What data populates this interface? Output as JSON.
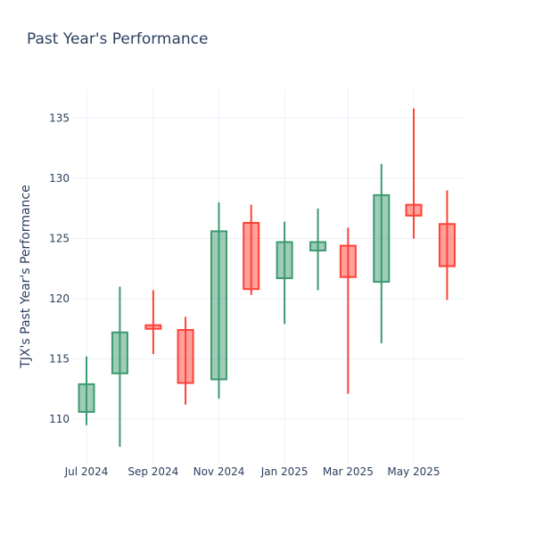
{
  "chart_data": {
    "type": "candlestick",
    "title": "Past Year's Performance",
    "ylabel": "TJX's Past Year's Performance",
    "xlabel": "",
    "ylim": [
      106.3,
      137.4
    ],
    "grid": true,
    "x_ticks": [
      {
        "label": "Jul 2024",
        "date": "2024-07-01"
      },
      {
        "label": "Sep 2024",
        "date": "2024-09-01"
      },
      {
        "label": "Nov 2024",
        "date": "2024-11-01"
      },
      {
        "label": "Jan 2025",
        "date": "2025-01-01"
      },
      {
        "label": "Mar 2025",
        "date": "2025-03-01"
      },
      {
        "label": "May 2025",
        "date": "2025-05-01"
      }
    ],
    "y_ticks": [
      110,
      115,
      120,
      125,
      130,
      135
    ],
    "colors": {
      "increasing_line": "#3d9970",
      "increasing_fill": "rgba(61,153,112,0.5)",
      "decreasing_line": "#ff4136",
      "decreasing_fill": "rgba(255,65,54,0.5)",
      "grid": "#ebf0f8",
      "text": "#2a3f5f"
    },
    "candles": [
      {
        "date": "2024-07-01",
        "open": 110.6,
        "high": 115.2,
        "low": 109.5,
        "close": 112.9
      },
      {
        "date": "2024-08-01",
        "open": 113.8,
        "high": 121.0,
        "low": 107.7,
        "close": 117.2
      },
      {
        "date": "2024-09-01",
        "open": 117.8,
        "high": 120.7,
        "low": 115.4,
        "close": 117.5
      },
      {
        "date": "2024-10-01",
        "open": 117.4,
        "high": 118.5,
        "low": 111.2,
        "close": 113.0
      },
      {
        "date": "2024-11-01",
        "open": 113.3,
        "high": 128.0,
        "low": 111.7,
        "close": 125.6
      },
      {
        "date": "2024-12-01",
        "open": 126.3,
        "high": 127.8,
        "low": 120.3,
        "close": 120.8
      },
      {
        "date": "2025-01-01",
        "open": 121.7,
        "high": 126.4,
        "low": 117.9,
        "close": 124.7
      },
      {
        "date": "2025-02-01",
        "open": 124.0,
        "high": 127.5,
        "low": 120.7,
        "close": 124.7
      },
      {
        "date": "2025-03-01",
        "open": 124.4,
        "high": 125.9,
        "low": 112.1,
        "close": 121.8
      },
      {
        "date": "2025-04-01",
        "open": 121.4,
        "high": 131.2,
        "low": 116.3,
        "close": 128.6
      },
      {
        "date": "2025-05-01",
        "open": 127.8,
        "high": 135.8,
        "low": 125.0,
        "close": 126.9
      },
      {
        "date": "2025-06-01",
        "open": 126.2,
        "high": 129.0,
        "low": 119.9,
        "close": 122.7
      }
    ]
  }
}
